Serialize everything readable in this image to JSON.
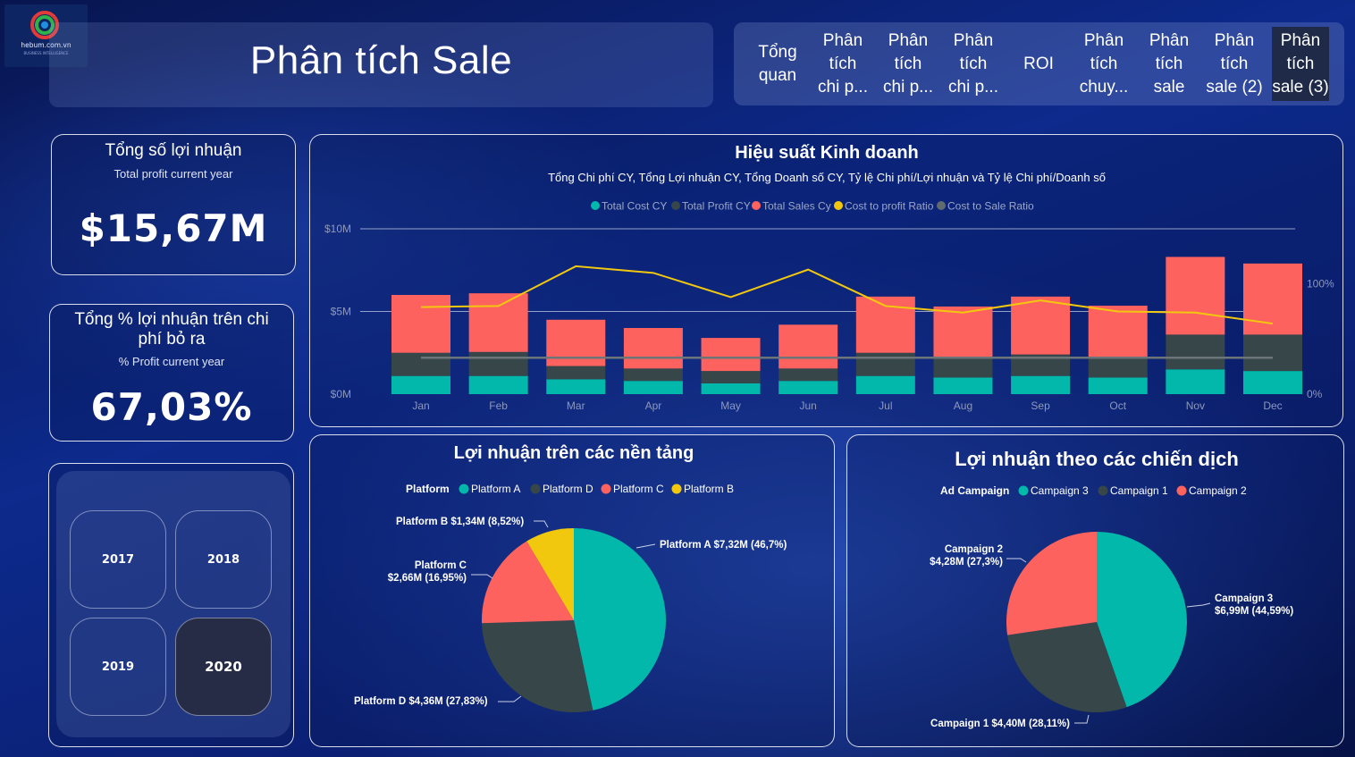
{
  "logo": {
    "name": "hebum.com.vn",
    "tagline": "BUSINESS INTELLIGENCE"
  },
  "page_title": "Phân tích Sale",
  "nav_tabs": [
    {
      "label": "Tổng\nquan"
    },
    {
      "label": "Phân\ntích\nchi p..."
    },
    {
      "label": "Phân\ntích\nchi p..."
    },
    {
      "label": "Phân\ntích\nchi p..."
    },
    {
      "label": "ROI"
    },
    {
      "label": "Phân\ntích\nchuy..."
    },
    {
      "label": "Phân\ntích\nsale"
    },
    {
      "label": "Phân\ntích\nsale (2)"
    },
    {
      "label": "Phân\ntích\nsale (3)",
      "active": true
    }
  ],
  "kpi_profit": {
    "title": "Tổng số lợi nhuận",
    "subtitle": "Total profit current year",
    "value": "$15,67M"
  },
  "kpi_ratio": {
    "title": "Tổng % lợi nhuận trên chi phí bỏ ra",
    "subtitle": "% Profit current year",
    "value": "67,03%"
  },
  "years": [
    {
      "label": "2017",
      "selected": false
    },
    {
      "label": "2018",
      "selected": false
    },
    {
      "label": "2019",
      "selected": false
    },
    {
      "label": "2020",
      "selected": true
    }
  ],
  "colors": {
    "teal": "#01b8aa",
    "dark": "#374649",
    "red": "#fd625e",
    "yellow": "#f2c80f",
    "gray": "#5f6b6d"
  },
  "chart_data": [
    {
      "type": "bar",
      "title": "Hiệu suất Kinh doanh",
      "subtitle": "Tổng Chi phí CY, Tổng Lợi nhuận CY, Tổng Doanh số CY, Tỷ lệ Chi phí/Lợi nhuận và Tỷ lệ Chi phí/Doanh số",
      "legend": [
        "Total Cost CY",
        "Total Profit CY",
        "Total Sales Cy",
        "Cost to profit Ratio",
        "Cost to Sale Ratio"
      ],
      "categories": [
        "Jan",
        "Feb",
        "Mar",
        "Apr",
        "May",
        "Jun",
        "Jul",
        "Aug",
        "Sep",
        "Oct",
        "Nov",
        "Dec"
      ],
      "y_ticks": [
        "$10M",
        "$5M",
        "$0M"
      ],
      "y2_ticks": [
        "100%",
        "0%"
      ],
      "ylim": [
        0,
        10
      ],
      "y2lim": [
        0,
        150
      ],
      "series": [
        {
          "name": "Total Cost CY",
          "values": [
            1.1,
            1.1,
            0.9,
            0.8,
            0.65,
            0.8,
            1.1,
            1.0,
            1.1,
            1.0,
            1.5,
            1.4
          ]
        },
        {
          "name": "Total Profit CY",
          "values": [
            1.4,
            1.45,
            0.8,
            0.75,
            0.75,
            0.75,
            1.4,
            1.2,
            1.3,
            1.2,
            2.1,
            2.2
          ]
        },
        {
          "name": "Total Sales Cy",
          "values": [
            3.5,
            3.55,
            2.8,
            2.45,
            2.0,
            2.65,
            3.4,
            3.1,
            3.5,
            3.15,
            4.7,
            4.3
          ]
        },
        {
          "name": "Cost to profit Ratio",
          "values": [
            79,
            80,
            116,
            110,
            88,
            113,
            80,
            74,
            85,
            75,
            74,
            64
          ]
        },
        {
          "name": "Cost to Sale Ratio",
          "values": [
            33,
            33,
            33,
            33,
            33,
            33,
            33,
            33,
            33,
            33,
            33,
            33
          ]
        }
      ]
    },
    {
      "type": "pie",
      "title": "Lợi nhuận trên các nền tảng",
      "legend_title": "Platform",
      "slices": [
        {
          "label": "Platform A",
          "value": 7.32,
          "percent": 46.7,
          "text": "Platform A $7,32M (46,7%)",
          "text_lines": [
            "Platform A $7,32M (46,7%)"
          ]
        },
        {
          "label": "Platform D",
          "value": 4.36,
          "percent": 27.83,
          "text": "Platform D $4,36M (27,83%)",
          "text_lines": [
            "Platform D $4,36M (27,83%)"
          ]
        },
        {
          "label": "Platform C",
          "value": 2.66,
          "percent": 16.95,
          "text": "Platform C $2,66M (16,95%)",
          "text_lines": [
            "Platform C",
            "$2,66M (16,95%)"
          ]
        },
        {
          "label": "Platform B",
          "value": 1.34,
          "percent": 8.52,
          "text": "Platform B $1,34M (8,52%)",
          "text_lines": [
            "Platform B $1,34M (8,52%)"
          ]
        }
      ]
    },
    {
      "type": "pie",
      "title": "Lợi nhuận theo các chiến dịch",
      "legend_title": "Ad Campaign",
      "slices": [
        {
          "label": "Campaign 3",
          "value": 6.99,
          "percent": 44.59,
          "text": "Campaign 3 $6,99M (44,59%)",
          "text_lines": [
            "Campaign 3",
            "$6,99M (44,59%)"
          ]
        },
        {
          "label": "Campaign 1",
          "value": 4.4,
          "percent": 28.11,
          "text": "Campaign 1 $4,40M (28,11%)",
          "text_lines": [
            "Campaign 1 $4,40M (28,11%)"
          ]
        },
        {
          "label": "Campaign 2",
          "value": 4.28,
          "percent": 27.3,
          "text": "Campaign 2 $4,28M (27,3%)",
          "text_lines": [
            "Campaign 2",
            "$4,28M (27,3%)"
          ]
        }
      ]
    }
  ]
}
